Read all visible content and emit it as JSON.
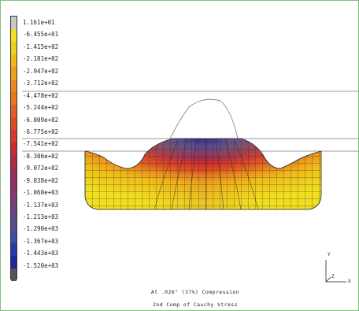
{
  "legend": {
    "values": [
      "1.161e+01",
      "-6.455e+01",
      "-1.415e+02",
      "-2.181e+02",
      "-2.947e+02",
      "-3.712e+02",
      "-4.478e+02",
      "-5.244e+02",
      "-6.009e+02",
      "-6.775e+02",
      "-7.541e+02",
      "-8.306e+02",
      "-9.072e+02",
      "-9.838e+02",
      "-1.060e+03",
      "-1.137e+03",
      "-1.213e+03",
      "-1.290e+03",
      "-1.367e+03",
      "-1.443e+03",
      "-1.520e+03"
    ],
    "colors": [
      "#c8c8c8",
      "#f0e020",
      "#f0cf1a",
      "#f0b818",
      "#eda018",
      "#ea8a1c",
      "#e6761f",
      "#e25e22",
      "#dc4a26",
      "#d63a2a",
      "#cc2a30",
      "#b02a46",
      "#9a2d58",
      "#8a3466",
      "#7a3c72",
      "#6a4680",
      "#574c8e",
      "#3e4ea0",
      "#2a3aae",
      "#1a2aa0",
      "#555555"
    ]
  },
  "annotation": {
    "line1": "At .026\" (37%) Compression",
    "line2": "2nd Comp of Cauchy Stress"
  },
  "axes": {
    "y_label": "Y",
    "z_label": "Z",
    "x_label": "X"
  }
}
